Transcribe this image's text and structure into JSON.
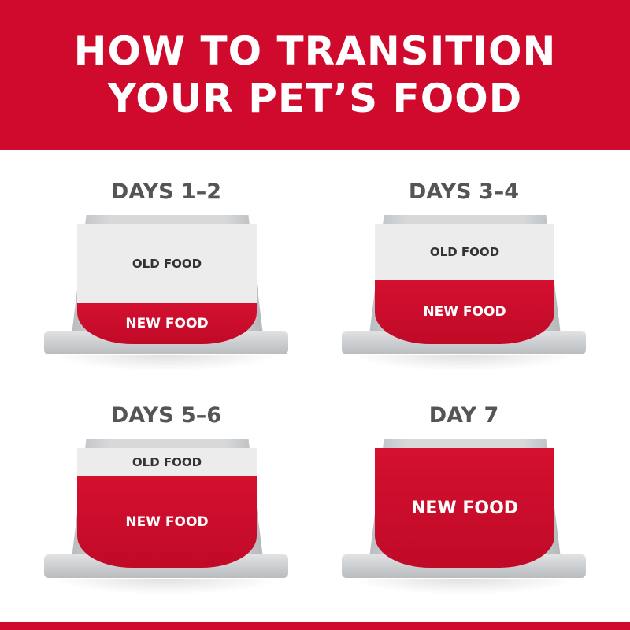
{
  "header": {
    "line1": "HOW TO TRANSITION",
    "line2": "YOUR PET’S FOOD"
  },
  "colors": {
    "brand_red": "#cf0a2c",
    "bowl_gray": "#d6d8da"
  },
  "steps": [
    {
      "day": "DAYS 1–2",
      "old_label": "OLD FOOD",
      "new_label": "NEW FOOD",
      "new_food_fraction": 0.25
    },
    {
      "day": "DAYS 3–4",
      "old_label": "OLD FOOD",
      "new_label": "NEW FOOD",
      "new_food_fraction": 0.5
    },
    {
      "day": "DAYS 5–6",
      "old_label": "OLD FOOD",
      "new_label": "NEW FOOD",
      "new_food_fraction": 0.75
    },
    {
      "day": "DAY 7",
      "new_label": "NEW FOOD",
      "new_food_fraction": 1.0
    }
  ]
}
